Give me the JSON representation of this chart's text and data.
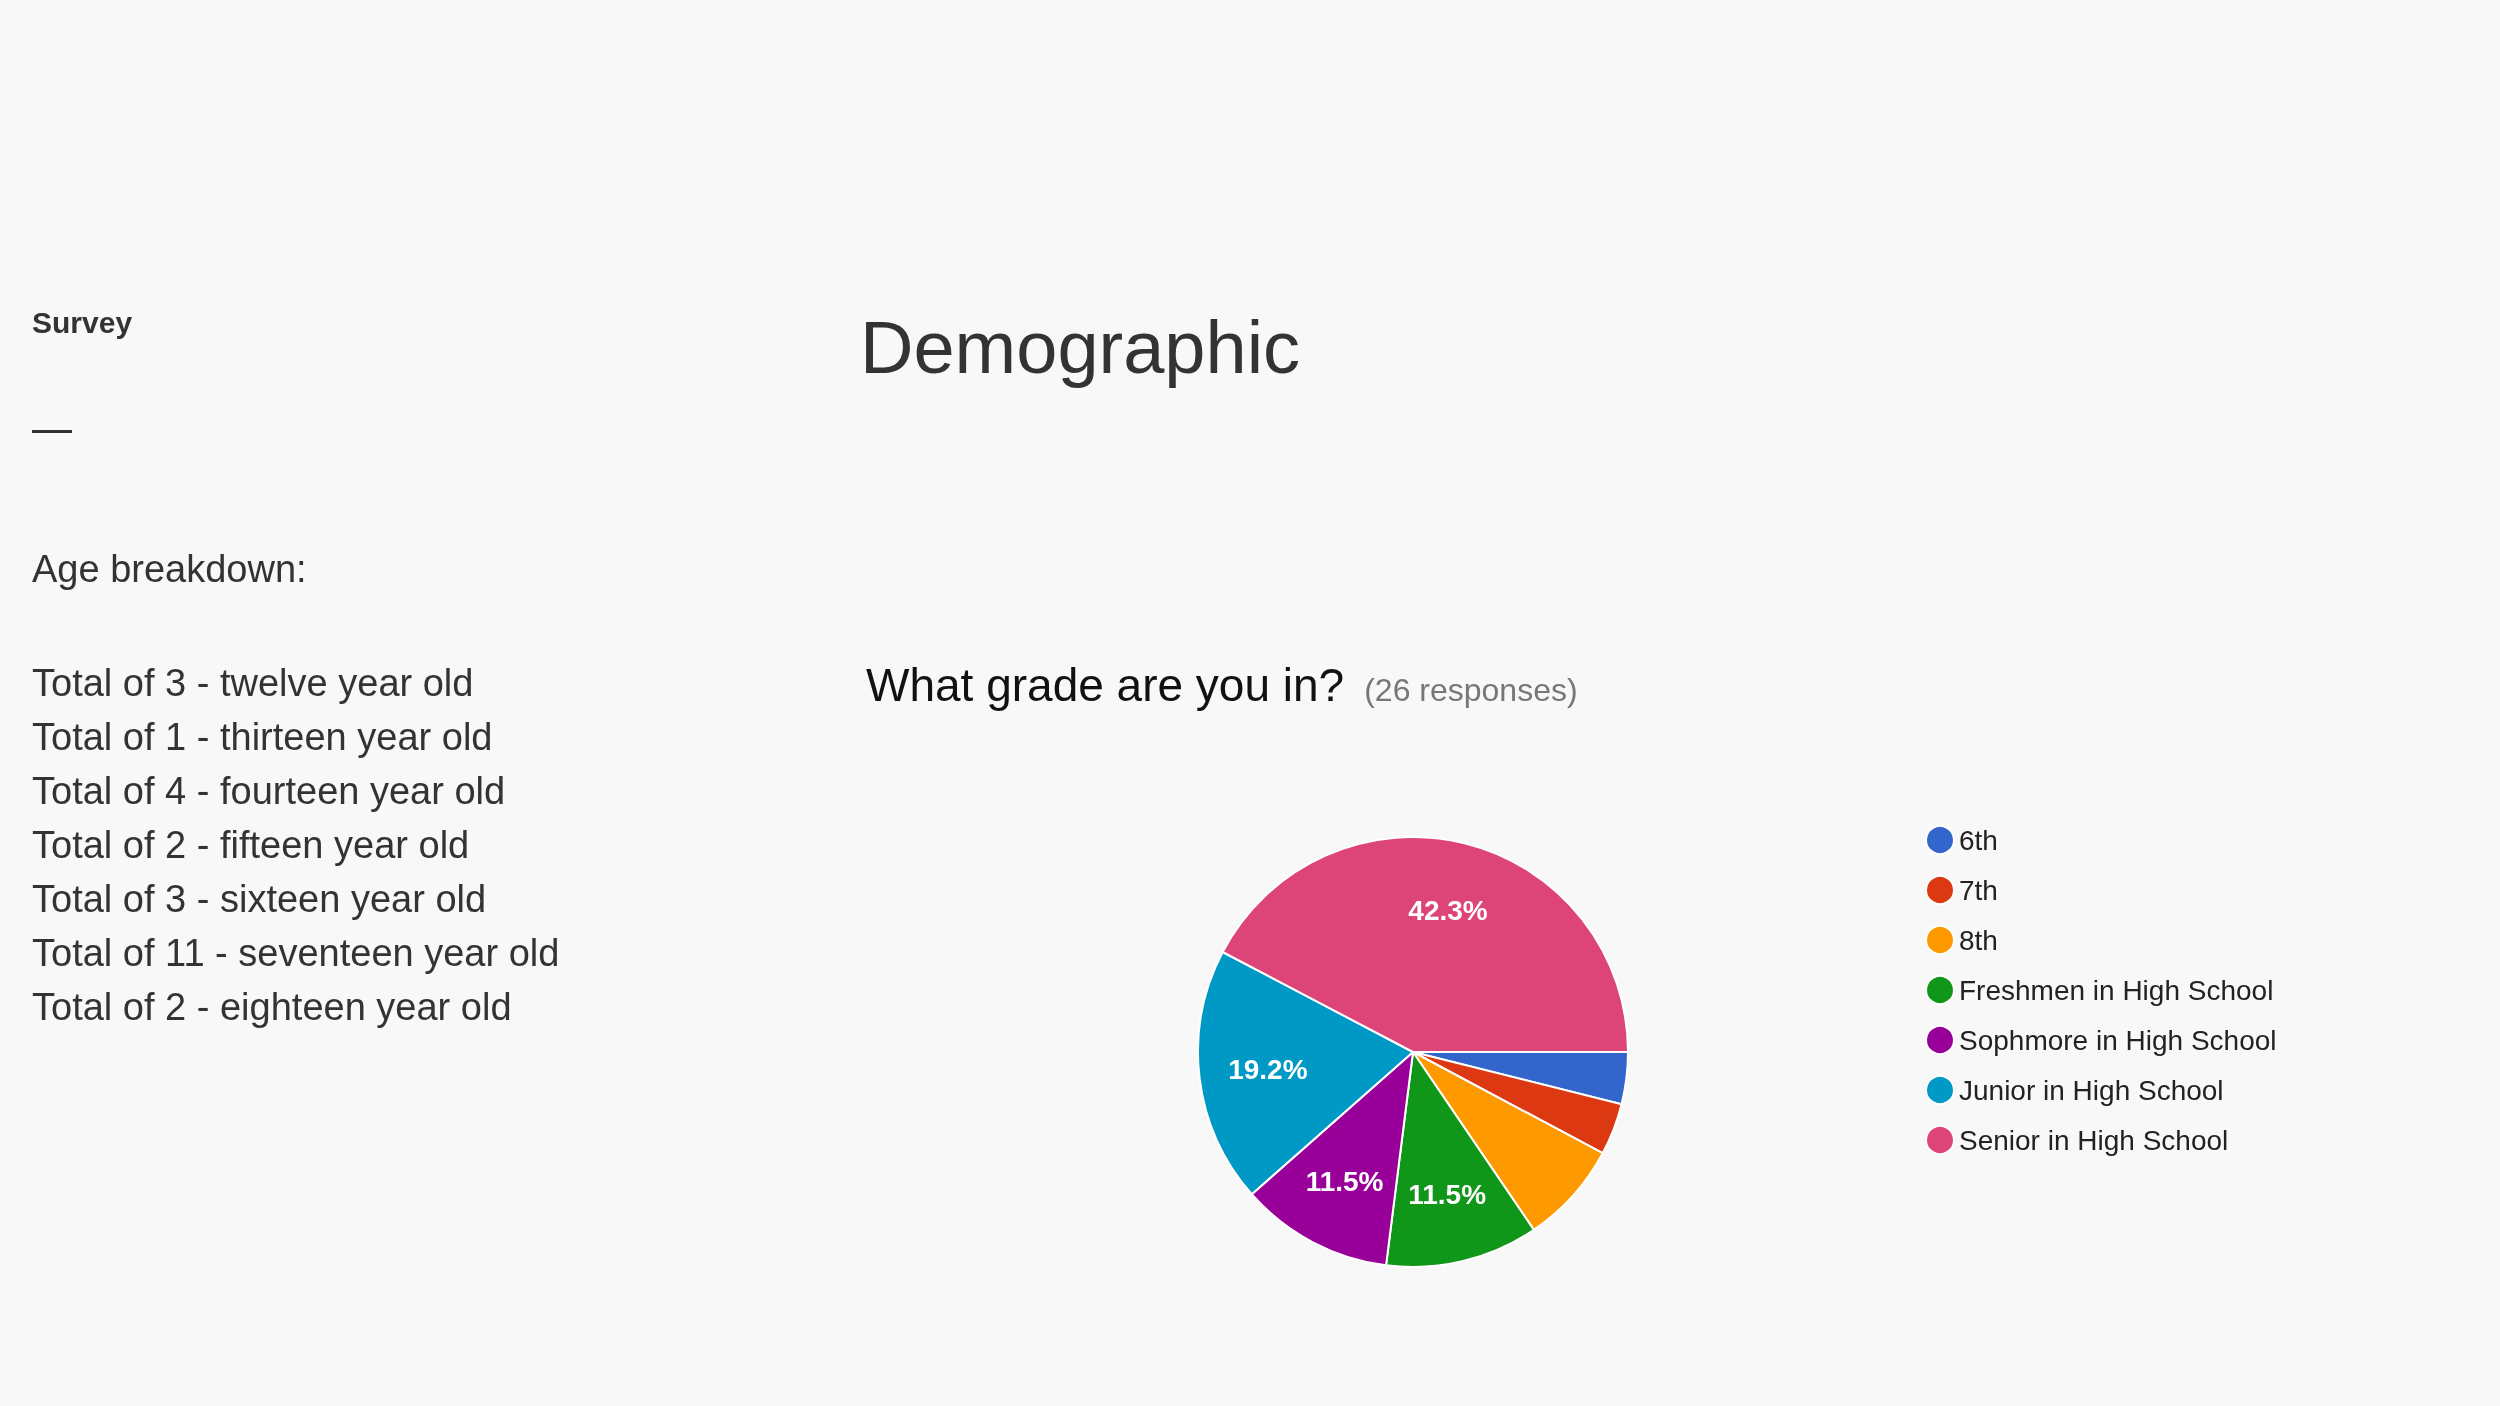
{
  "chart_data": {
    "type": "pie",
    "title": "Demographic",
    "subtitle": "What grade are you in?",
    "categories": [
      "6th",
      "7th",
      "8th",
      "Freshmen in High School",
      "Sophmore in High School",
      "Junior in High School",
      "Senior in High School"
    ],
    "values": [
      3.9,
      3.9,
      7.7,
      11.5,
      11.5,
      19.2,
      42.3
    ],
    "colors": [
      "#3366cc",
      "#dc3912",
      "#ff9900",
      "#109618",
      "#990099",
      "#0099c6",
      "#dd4477"
    ],
    "value_labels": [
      null,
      null,
      null,
      "11.5%",
      "11.5%",
      "19.2%",
      "42.3%"
    ],
    "legend": "right",
    "annotations": [
      "Survey",
      "Age breakdown:",
      "Total of 3 - twelve year old",
      "Total of 1 - thirteen year old",
      "Total of 4 - fourteen year old",
      "Total of 2 - fifteen year old",
      "Total of 3 - sixteen year old",
      "Total of 11 - seventeen year old",
      "Total of 2 - eighteen year old",
      "(26 responses)"
    ]
  }
}
